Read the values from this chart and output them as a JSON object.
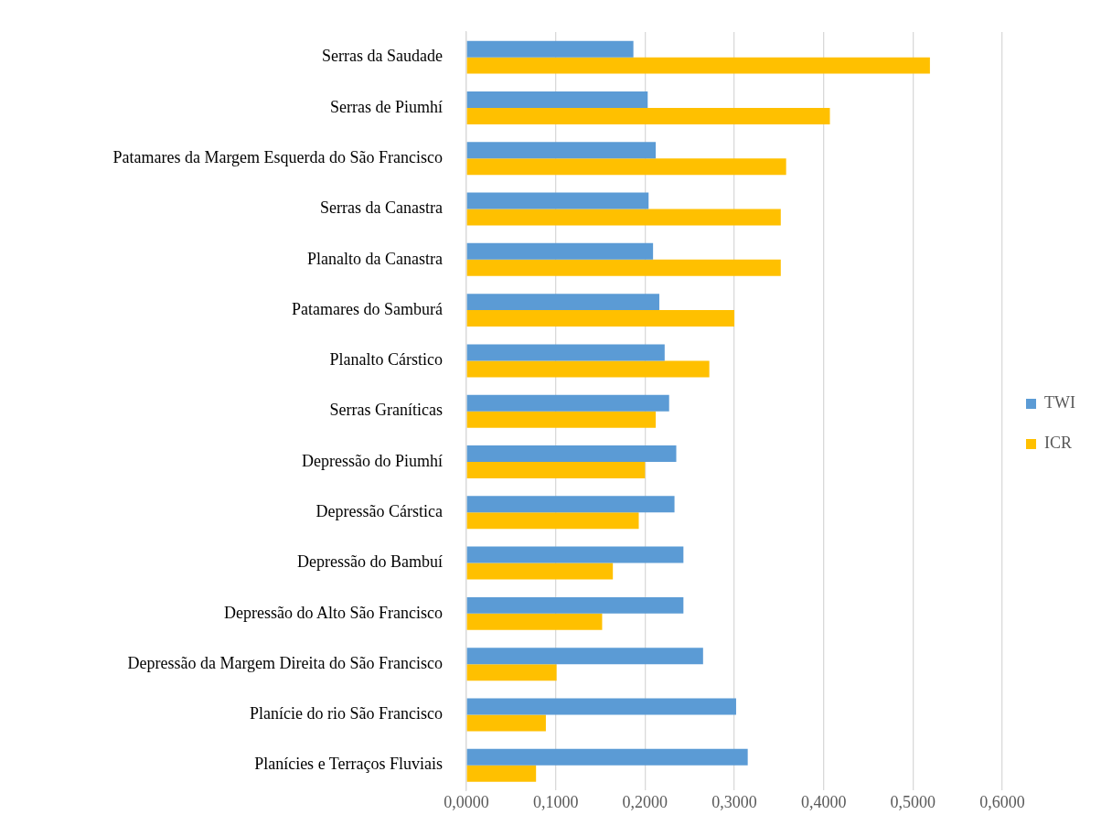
{
  "chart_data": {
    "type": "bar",
    "orientation": "horizontal",
    "categories": [
      "Serras da Saudade",
      "Serras de Piumhí",
      "Patamares da Margem Esquerda do São Francisco",
      "Serras da Canastra",
      "Planalto da Canastra",
      "Patamares do Samburá",
      "Planalto Cárstico",
      "Serras Graníticas",
      "Depressão do Piumhí",
      "Depressão Cárstica",
      "Depressão do Bambuí",
      "Depressão do Alto São Francisco",
      "Depressão da Margem Direita do São Francisco",
      "Planície do rio São Francisco",
      "Planícies e Terraços Fluviais"
    ],
    "series": [
      {
        "name": "TWI",
        "color": "#5b9bd5",
        "values": [
          0.187,
          0.203,
          0.212,
          0.204,
          0.209,
          0.216,
          0.222,
          0.227,
          0.235,
          0.233,
          0.243,
          0.243,
          0.265,
          0.302,
          0.315
        ]
      },
      {
        "name": "ICR",
        "color": "#ffc000",
        "values": [
          0.519,
          0.407,
          0.358,
          0.352,
          0.352,
          0.3,
          0.272,
          0.212,
          0.2,
          0.193,
          0.164,
          0.152,
          0.101,
          0.089,
          0.078
        ]
      }
    ],
    "xlim": [
      0,
      0.6
    ],
    "xticks": [
      {
        "value": 0,
        "label": "0,0000"
      },
      {
        "value": 0.1,
        "label": "0,1000"
      },
      {
        "value": 0.2,
        "label": "0,2000"
      },
      {
        "value": 0.3,
        "label": "0,3000"
      },
      {
        "value": 0.4,
        "label": "0,4000"
      },
      {
        "value": 0.5,
        "label": "0,5000"
      },
      {
        "value": 0.6,
        "label": "0,6000"
      }
    ],
    "grid": "x",
    "legend": "right"
  }
}
